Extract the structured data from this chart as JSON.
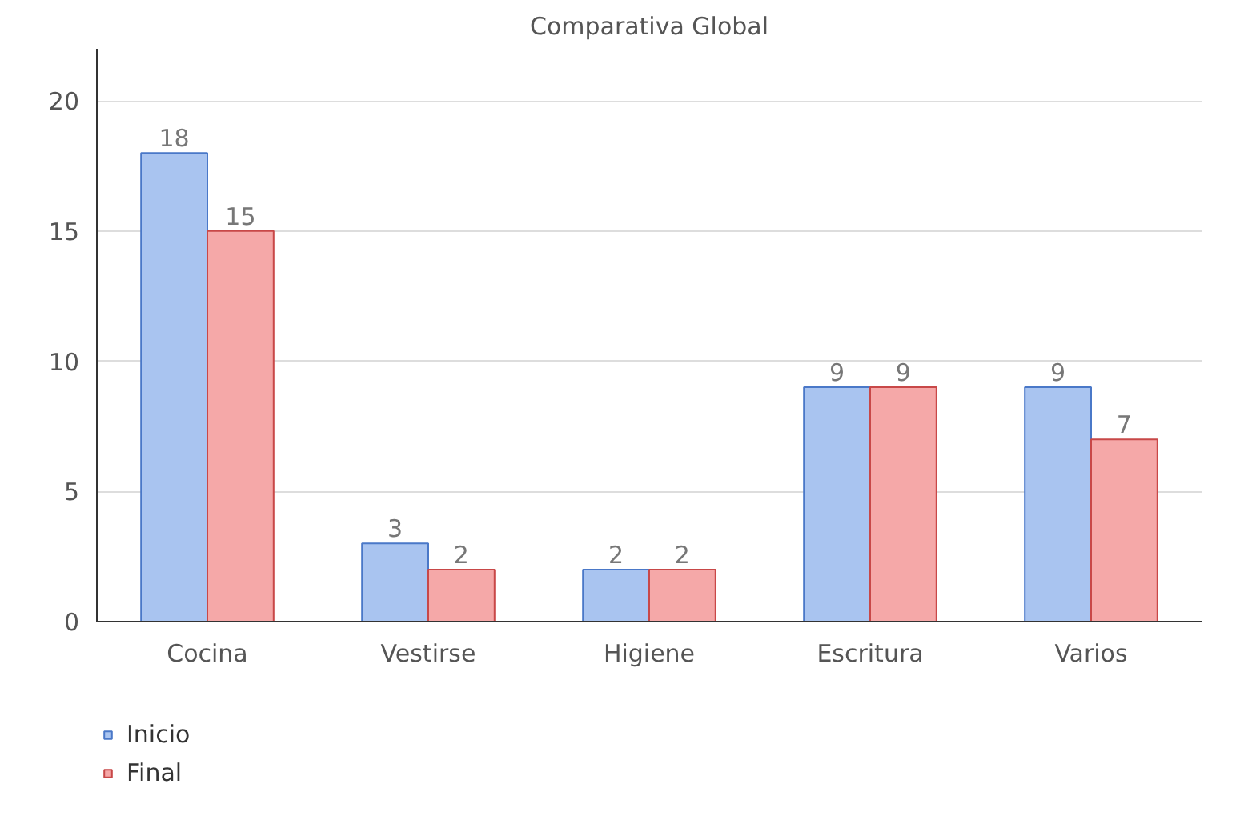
{
  "chart_data": {
    "type": "bar",
    "title": "Comparativa Global",
    "categories": [
      "Cocina",
      "Vestirse",
      "Higiene",
      "Escritura",
      "Varios"
    ],
    "series": [
      {
        "name": "Inicio",
        "color": "#a9c4f0",
        "values": [
          18,
          3,
          2,
          9,
          9
        ]
      },
      {
        "name": "Final",
        "color": "#f5a8a8",
        "values": [
          15,
          2,
          2,
          9,
          7
        ]
      }
    ],
    "ylim": [
      0,
      22
    ],
    "yticks": [
      0,
      5,
      10,
      15,
      20
    ],
    "grid": "y",
    "legend": "bottom left",
    "data_labels": true
  }
}
